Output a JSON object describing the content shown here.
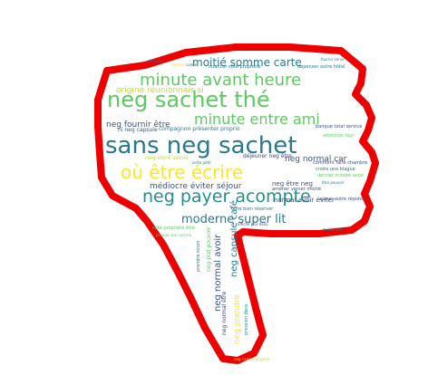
{
  "wordcloud": {
    "words": [
      "sans neg sachet",
      "neg sachet thé",
      "où être écrire",
      "neg payer acompte",
      "minute avant heure",
      "minute entre ami",
      "moderne super lit",
      "moitié somme carte",
      "origine réunionnais si",
      "neg fournir être",
      "médiocre éviter séjour",
      "neg normal car",
      "neg capsule café",
      "neg normal avoir",
      "neg prendre",
      "compagnon présenter proprio",
      "ni neg capsule",
      "neg être neg",
      "neg vient savoir",
      "banque total service",
      "comment faire chambre",
      "croire une blague",
      "dernier minute avoir",
      "normal avoir éviter",
      "dépenser autre hôtel",
      "nuancer côté propriété",
      "offre bien réserver",
      "déjeuner neg être",
      "amener verser moitié",
      "neg plat pouvoir",
      "neg normal être",
      "côté propriété être",
      "attention tour",
      "aucun autre réponse",
      "proprio une inscrire",
      "prendre sinon",
      "affiché prix dans",
      "neg comment gérer",
      "fournir servir",
      "pression dans",
      "dernier",
      "être pouvoir",
      "moitié être",
      "sorte petit",
      "calme",
      "offre bien"
    ]
  },
  "colors": {
    "outline": "#ee0000",
    "background": "#ffffff"
  }
}
